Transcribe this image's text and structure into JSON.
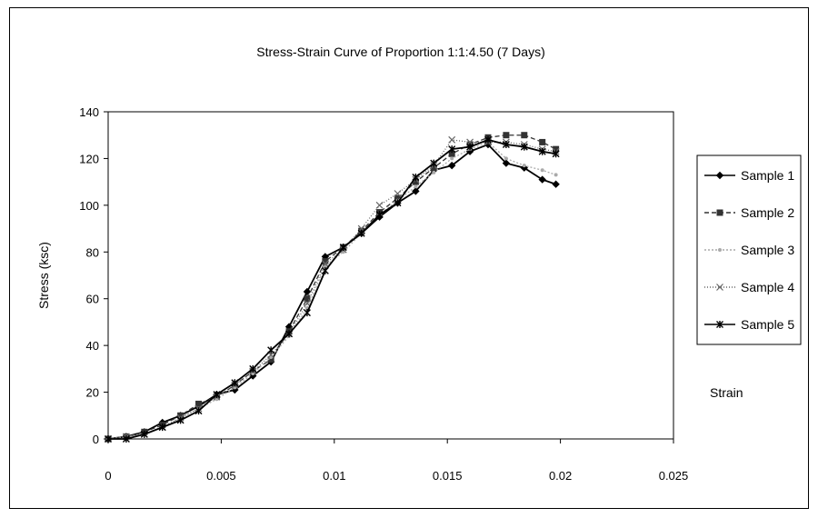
{
  "chart_data": {
    "type": "line",
    "title": "Stress-Strain Curve of Proportion 1:1:4.50 (7 Days)",
    "xlabel": "Strain",
    "ylabel": "Stress (ksc)",
    "xlim": [
      0,
      0.025
    ],
    "ylim": [
      0,
      140
    ],
    "xticks": [
      "0",
      "0.005",
      "0.01",
      "0.015",
      "0.02",
      "0.025"
    ],
    "yticks": [
      "0",
      "20",
      "40",
      "60",
      "80",
      "100",
      "120",
      "140"
    ],
    "grid": false,
    "legend_position": "right",
    "series": [
      {
        "name": "Sample 1",
        "color": "#000000",
        "dash": "",
        "marker": "diamond",
        "x": [
          0,
          0.0008,
          0.0016,
          0.0024,
          0.0032,
          0.004,
          0.0048,
          0.0056,
          0.0064,
          0.0072,
          0.008,
          0.0088,
          0.0096,
          0.0104,
          0.0112,
          0.012,
          0.0128,
          0.0136,
          0.0144,
          0.0152,
          0.016,
          0.0168,
          0.0176,
          0.0184,
          0.0192,
          0.0198
        ],
        "y": [
          0,
          1,
          3,
          7,
          10,
          14,
          19,
          21,
          27,
          33,
          48,
          63,
          78,
          82,
          88,
          95,
          101,
          106,
          115,
          117,
          123,
          126,
          118,
          116,
          111,
          109
        ]
      },
      {
        "name": "Sample 2",
        "color": "#333333",
        "dash": "5,3",
        "marker": "square",
        "x": [
          0,
          0.0008,
          0.0016,
          0.0024,
          0.0032,
          0.004,
          0.0048,
          0.0056,
          0.0064,
          0.0072,
          0.008,
          0.0088,
          0.0096,
          0.0104,
          0.0112,
          0.012,
          0.0128,
          0.0136,
          0.0144,
          0.0152,
          0.016,
          0.0168,
          0.0176,
          0.0184,
          0.0192,
          0.0198
        ],
        "y": [
          0,
          1,
          3,
          6,
          10,
          15,
          18,
          23,
          29,
          34,
          46,
          60,
          76,
          82,
          89,
          97,
          103,
          110,
          116,
          122,
          126,
          129,
          130,
          130,
          127,
          124
        ]
      },
      {
        "name": "Sample 3",
        "color": "#aaaaaa",
        "dash": "2,2",
        "marker": "dot",
        "x": [
          0,
          0.0008,
          0.0016,
          0.0024,
          0.0032,
          0.004,
          0.0048,
          0.0056,
          0.0064,
          0.0072,
          0.008,
          0.0088,
          0.0096,
          0.0104,
          0.0112,
          0.012,
          0.0128,
          0.0136,
          0.0144,
          0.0152,
          0.016,
          0.0168,
          0.0176,
          0.0184,
          0.0192,
          0.0198
        ],
        "y": [
          0,
          1,
          2,
          5,
          9,
          13,
          17,
          22,
          28,
          35,
          44,
          56,
          74,
          80,
          88,
          96,
          102,
          108,
          114,
          120,
          124,
          127,
          120,
          117,
          115,
          113
        ]
      },
      {
        "name": "Sample 4",
        "color": "#666666",
        "dash": "1,2",
        "marker": "x",
        "x": [
          0,
          0.0008,
          0.0016,
          0.0024,
          0.0032,
          0.004,
          0.0048,
          0.0056,
          0.0064,
          0.0072,
          0.008,
          0.0088,
          0.0096,
          0.0104,
          0.0112,
          0.012,
          0.0128,
          0.0136,
          0.0144,
          0.0152,
          0.016,
          0.0168,
          0.0176,
          0.0184,
          0.0192,
          0.0198
        ],
        "y": [
          0,
          1,
          2,
          5,
          9,
          13,
          18,
          23,
          29,
          36,
          45,
          58,
          75,
          81,
          90,
          100,
          105,
          111,
          117,
          128,
          127,
          127,
          127,
          126,
          124,
          123
        ]
      },
      {
        "name": "Sample 5",
        "color": "#000000",
        "dash": "",
        "marker": "asterisk",
        "x": [
          0,
          0.0008,
          0.0016,
          0.0024,
          0.0032,
          0.004,
          0.0048,
          0.0056,
          0.0064,
          0.0072,
          0.008,
          0.0088,
          0.0096,
          0.0104,
          0.0112,
          0.012,
          0.0128,
          0.0136,
          0.0144,
          0.0152,
          0.016,
          0.0168,
          0.0176,
          0.0184,
          0.0192,
          0.0198
        ],
        "y": [
          0,
          0,
          2,
          5,
          8,
          12,
          19,
          24,
          30,
          38,
          45,
          54,
          72,
          82,
          88,
          96,
          101,
          112,
          118,
          124,
          125,
          128,
          126,
          125,
          123,
          122
        ]
      }
    ]
  }
}
